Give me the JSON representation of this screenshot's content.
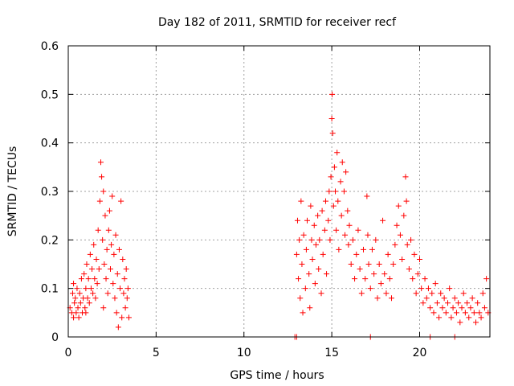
{
  "chart_data": {
    "type": "scatter",
    "title": "Day 182 of 2011, SRMTID for receiver recf",
    "xlabel": "GPS time / hours",
    "ylabel": "SRMTID / TECUs",
    "xlim": [
      0,
      24
    ],
    "ylim": [
      0,
      0.6
    ],
    "xticks": [
      0,
      5,
      10,
      15,
      20
    ],
    "yticks": [
      0,
      0.1,
      0.2,
      0.3,
      0.4,
      0.5,
      0.6
    ],
    "xtick_labels": [
      "0",
      "5",
      "10",
      "15",
      "20"
    ],
    "ytick_labels": [
      "0",
      "0.1",
      "0.2",
      "0.3",
      "0.4",
      "0.5",
      "0.6"
    ],
    "grid": true,
    "marker": "plus",
    "color": "#ff0000",
    "series": [
      {
        "name": "SRMTID",
        "points": [
          [
            0.1,
            0.06
          ],
          [
            0.2,
            0.05
          ],
          [
            0.25,
            0.09
          ],
          [
            0.3,
            0.04
          ],
          [
            0.35,
            0.07
          ],
          [
            0.4,
            0.08
          ],
          [
            0.45,
            0.05
          ],
          [
            0.5,
            0.1
          ],
          [
            0.55,
            0.06
          ],
          [
            0.6,
            0.04
          ],
          [
            0.65,
            0.09
          ],
          [
            0.7,
            0.07
          ],
          [
            0.75,
            0.12
          ],
          [
            0.8,
            0.05
          ],
          [
            0.85,
            0.08
          ],
          [
            0.9,
            0.13
          ],
          [
            0.95,
            0.06
          ],
          [
            1.0,
            0.1
          ],
          [
            1.05,
            0.15
          ],
          [
            1.1,
            0.08
          ],
          [
            1.15,
            0.12
          ],
          [
            1.2,
            0.07
          ],
          [
            1.25,
            0.17
          ],
          [
            1.3,
            0.1
          ],
          [
            1.35,
            0.14
          ],
          [
            1.4,
            0.09
          ],
          [
            1.45,
            0.19
          ],
          [
            1.5,
            0.12
          ],
          [
            1.55,
            0.08
          ],
          [
            1.6,
            0.16
          ],
          [
            1.65,
            0.11
          ],
          [
            1.7,
            0.22
          ],
          [
            1.75,
            0.14
          ],
          [
            1.8,
            0.28
          ],
          [
            1.85,
            0.36
          ],
          [
            1.9,
            0.33
          ],
          [
            1.95,
            0.2
          ],
          [
            2.0,
            0.3
          ],
          [
            2.05,
            0.15
          ],
          [
            2.1,
            0.25
          ],
          [
            2.15,
            0.12
          ],
          [
            2.2,
            0.18
          ],
          [
            2.25,
            0.09
          ],
          [
            2.3,
            0.22
          ],
          [
            2.35,
            0.26
          ],
          [
            2.4,
            0.14
          ],
          [
            2.45,
            0.19
          ],
          [
            2.5,
            0.29
          ],
          [
            2.55,
            0.11
          ],
          [
            2.6,
            0.17
          ],
          [
            2.65,
            0.08
          ],
          [
            2.7,
            0.21
          ],
          [
            2.75,
            0.05
          ],
          [
            2.8,
            0.13
          ],
          [
            2.85,
            0.02
          ],
          [
            2.9,
            0.18
          ],
          [
            2.95,
            0.1
          ],
          [
            3.0,
            0.28
          ],
          [
            3.05,
            0.04
          ],
          [
            3.1,
            0.16
          ],
          [
            3.15,
            0.09
          ],
          [
            3.2,
            0.12
          ],
          [
            3.25,
            0.06
          ],
          [
            3.3,
            0.14
          ],
          [
            3.35,
            0.08
          ],
          [
            3.4,
            0.1
          ],
          [
            3.45,
            0.04
          ],
          [
            0.3,
            0.11
          ],
          [
            1.0,
            0.05
          ],
          [
            2.0,
            0.06
          ],
          [
            12.9,
            0.0
          ],
          [
            13.0,
            0.17
          ],
          [
            13.05,
            0.24
          ],
          [
            13.1,
            0.12
          ],
          [
            13.15,
            0.2
          ],
          [
            13.2,
            0.08
          ],
          [
            13.25,
            0.28
          ],
          [
            13.3,
            0.15
          ],
          [
            13.35,
            0.05
          ],
          [
            13.4,
            0.21
          ],
          [
            13.5,
            0.1
          ],
          [
            13.55,
            0.18
          ],
          [
            13.6,
            0.24
          ],
          [
            13.7,
            0.13
          ],
          [
            13.75,
            0.06
          ],
          [
            13.8,
            0.27
          ],
          [
            13.85,
            0.2
          ],
          [
            13.9,
            0.16
          ],
          [
            14.0,
            0.23
          ],
          [
            14.05,
            0.11
          ],
          [
            14.1,
            0.19
          ],
          [
            14.2,
            0.25
          ],
          [
            14.25,
            0.14
          ],
          [
            14.3,
            0.2
          ],
          [
            14.4,
            0.09
          ],
          [
            14.45,
            0.26
          ],
          [
            14.5,
            0.17
          ],
          [
            14.6,
            0.22
          ],
          [
            14.65,
            0.28
          ],
          [
            14.7,
            0.13
          ],
          [
            14.8,
            0.24
          ],
          [
            14.85,
            0.3
          ],
          [
            14.9,
            0.2
          ],
          [
            14.95,
            0.33
          ],
          [
            15.0,
            0.45
          ],
          [
            15.02,
            0.5
          ],
          [
            15.05,
            0.42
          ],
          [
            15.1,
            0.27
          ],
          [
            15.15,
            0.35
          ],
          [
            15.2,
            0.3
          ],
          [
            15.25,
            0.22
          ],
          [
            15.3,
            0.38
          ],
          [
            15.35,
            0.28
          ],
          [
            15.4,
            0.18
          ],
          [
            15.5,
            0.32
          ],
          [
            15.55,
            0.25
          ],
          [
            15.6,
            0.36
          ],
          [
            15.7,
            0.3
          ],
          [
            15.75,
            0.21
          ],
          [
            15.8,
            0.34
          ],
          [
            15.9,
            0.26
          ],
          [
            15.95,
            0.19
          ],
          [
            16.0,
            0.23
          ],
          [
            16.1,
            0.15
          ],
          [
            16.2,
            0.2
          ],
          [
            16.3,
            0.12
          ],
          [
            16.4,
            0.17
          ],
          [
            16.5,
            0.22
          ],
          [
            16.6,
            0.14
          ],
          [
            16.7,
            0.09
          ],
          [
            16.8,
            0.18
          ],
          [
            16.9,
            0.12
          ],
          [
            17.0,
            0.29
          ],
          [
            17.05,
            0.21
          ],
          [
            17.1,
            0.15
          ],
          [
            17.2,
            0.1
          ],
          [
            17.3,
            0.18
          ],
          [
            17.4,
            0.13
          ],
          [
            17.5,
            0.2
          ],
          [
            17.6,
            0.08
          ],
          [
            17.7,
            0.15
          ],
          [
            17.8,
            0.11
          ],
          [
            17.9,
            0.24
          ],
          [
            18.0,
            0.13
          ],
          [
            18.1,
            0.09
          ],
          [
            18.2,
            0.17
          ],
          [
            18.3,
            0.12
          ],
          [
            18.4,
            0.08
          ],
          [
            18.5,
            0.15
          ],
          [
            18.6,
            0.19
          ],
          [
            18.7,
            0.23
          ],
          [
            18.8,
            0.27
          ],
          [
            18.9,
            0.21
          ],
          [
            19.0,
            0.16
          ],
          [
            19.1,
            0.25
          ],
          [
            19.2,
            0.33
          ],
          [
            19.25,
            0.28
          ],
          [
            19.3,
            0.19
          ],
          [
            19.4,
            0.14
          ],
          [
            19.5,
            0.2
          ],
          [
            19.6,
            0.12
          ],
          [
            19.7,
            0.17
          ],
          [
            19.8,
            0.09
          ],
          [
            19.9,
            0.13
          ],
          [
            20.0,
            0.16
          ],
          [
            20.1,
            0.1
          ],
          [
            20.2,
            0.07
          ],
          [
            20.3,
            0.12
          ],
          [
            20.4,
            0.08
          ],
          [
            20.5,
            0.1
          ],
          [
            20.6,
            0.06
          ],
          [
            20.7,
            0.09
          ],
          [
            20.8,
            0.05
          ],
          [
            20.9,
            0.11
          ],
          [
            21.0,
            0.07
          ],
          [
            21.1,
            0.04
          ],
          [
            21.2,
            0.09
          ],
          [
            21.3,
            0.06
          ],
          [
            21.4,
            0.08
          ],
          [
            21.5,
            0.05
          ],
          [
            21.6,
            0.07
          ],
          [
            21.7,
            0.1
          ],
          [
            21.8,
            0.04
          ],
          [
            21.9,
            0.06
          ],
          [
            22.0,
            0.08
          ],
          [
            22.1,
            0.05
          ],
          [
            22.2,
            0.07
          ],
          [
            22.3,
            0.03
          ],
          [
            22.4,
            0.06
          ],
          [
            22.5,
            0.09
          ],
          [
            22.6,
            0.05
          ],
          [
            22.7,
            0.07
          ],
          [
            22.8,
            0.04
          ],
          [
            22.9,
            0.06
          ],
          [
            23.0,
            0.08
          ],
          [
            23.1,
            0.05
          ],
          [
            23.2,
            0.03
          ],
          [
            23.3,
            0.07
          ],
          [
            23.4,
            0.05
          ],
          [
            23.5,
            0.04
          ],
          [
            23.6,
            0.09
          ],
          [
            23.7,
            0.06
          ],
          [
            23.8,
            0.12
          ],
          [
            23.9,
            0.05
          ],
          [
            17.2,
            0.0
          ],
          [
            20.6,
            0.0
          ],
          [
            22.0,
            0.0
          ],
          [
            13.0,
            0.0
          ]
        ]
      }
    ]
  }
}
